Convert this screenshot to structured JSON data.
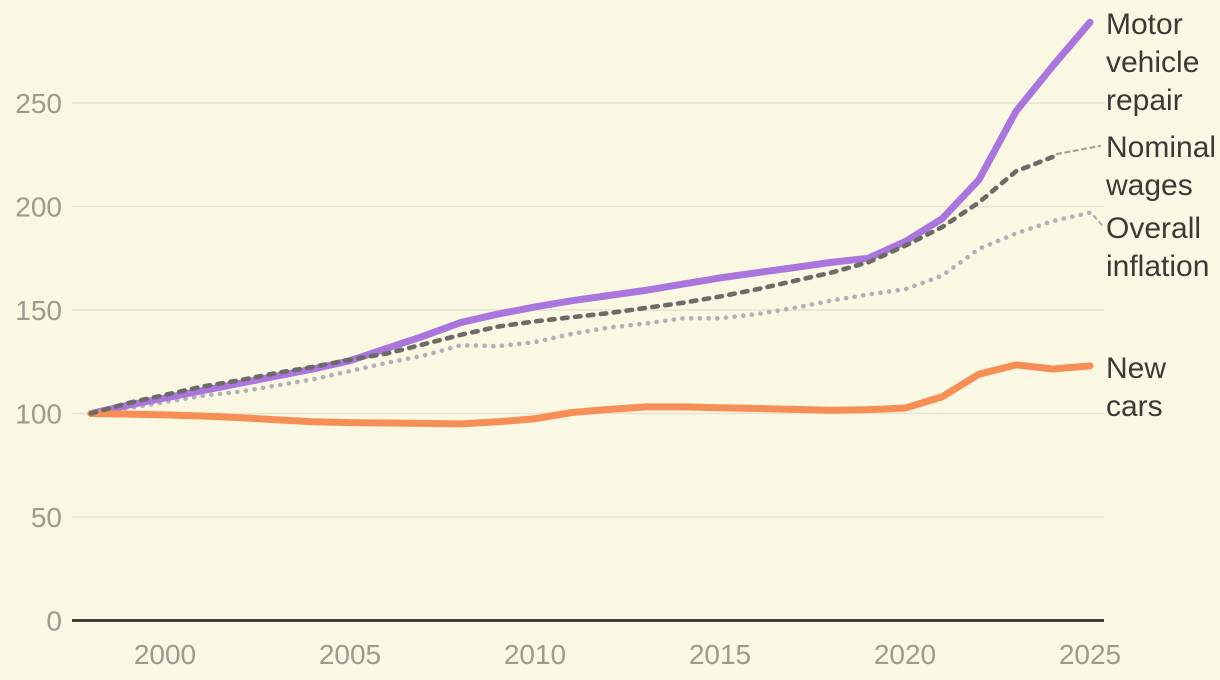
{
  "chart_data": {
    "type": "line",
    "title": "",
    "xlabel": "",
    "ylabel": "",
    "x": [
      1998,
      1999,
      2000,
      2001,
      2002,
      2003,
      2004,
      2005,
      2006,
      2007,
      2008,
      2009,
      2010,
      2011,
      2012,
      2013,
      2014,
      2015,
      2016,
      2017,
      2018,
      2019,
      2020,
      2021,
      2022,
      2023,
      2024,
      2025
    ],
    "xlim": [
      1997.5,
      2025.5
    ],
    "ylim": [
      0,
      295
    ],
    "x_ticks": [
      "2000",
      "2005",
      "2010",
      "2015",
      "2020",
      "2025"
    ],
    "x_tick_values": [
      2000,
      2005,
      2010,
      2015,
      2020,
      2025
    ],
    "y_ticks": [
      "0",
      "50",
      "100",
      "150",
      "200",
      "250"
    ],
    "y_tick_values": [
      0,
      50,
      100,
      150,
      200,
      250
    ],
    "grid": "horizontal",
    "legend_position": "right-edge-direct-labels",
    "series": [
      {
        "name": "Overall inflation",
        "label_lines": [
          "Overall",
          "inflation"
        ],
        "style": "dotted",
        "color": "#b2b0b8",
        "values": [
          100,
          102.5,
          105.5,
          108.5,
          110.5,
          113.5,
          116.5,
          120.5,
          124.5,
          128,
          133,
          132.5,
          134.5,
          138.5,
          141.5,
          143.5,
          146,
          146,
          148,
          151,
          154.5,
          157.5,
          160,
          166.5,
          179.5,
          187,
          193,
          197
        ]
      },
      {
        "name": "Motor vehicle repair",
        "label_lines": [
          "Motor",
          "vehicle",
          "repair"
        ],
        "style": "solid",
        "color": "#aa75dc",
        "values": [
          100,
          104,
          107.5,
          111,
          114.5,
          118,
          121.5,
          125.5,
          131.5,
          137.5,
          144,
          148,
          151.5,
          154.5,
          157,
          159.5,
          162.5,
          165.5,
          168,
          170.5,
          173,
          175,
          183,
          194,
          213,
          246,
          268,
          289
        ]
      },
      {
        "name": "New cars",
        "label_lines": [
          "New",
          "cars"
        ],
        "style": "solid",
        "color": "#f78e55",
        "values": [
          100,
          99.7,
          99.3,
          98.8,
          98,
          97,
          96,
          95.6,
          95.4,
          95.2,
          95,
          96,
          97.5,
          100.5,
          102,
          103.2,
          103.2,
          102.8,
          102.4,
          102,
          101.6,
          101.9,
          102.6,
          108,
          119,
          123.5,
          121.5,
          123
        ]
      },
      {
        "name": "Nominal wages",
        "label_lines": [
          "Nominal",
          "wages"
        ],
        "style": "dashed",
        "color": "#6c6b67",
        "values": [
          100,
          105,
          109,
          113,
          116,
          119.5,
          122.5,
          126,
          129,
          133.5,
          138,
          142,
          144.5,
          146.5,
          148.5,
          151,
          153.5,
          156.5,
          160,
          164,
          168,
          173,
          181,
          190,
          202,
          217,
          224,
          229
        ]
      }
    ],
    "index_base_value": 100
  },
  "colors": {
    "background": "#faf7e2",
    "gridline": "#e7e4d1",
    "axis_line": "#302f28",
    "tick_text": "#9c9b8f",
    "label_text": "#3b3a35",
    "motor_vehicle_repair": "#aa75dc",
    "nominal_wages": "#6c6b67",
    "overall_inflation": "#b2b0b8",
    "new_cars": "#f78e55"
  }
}
